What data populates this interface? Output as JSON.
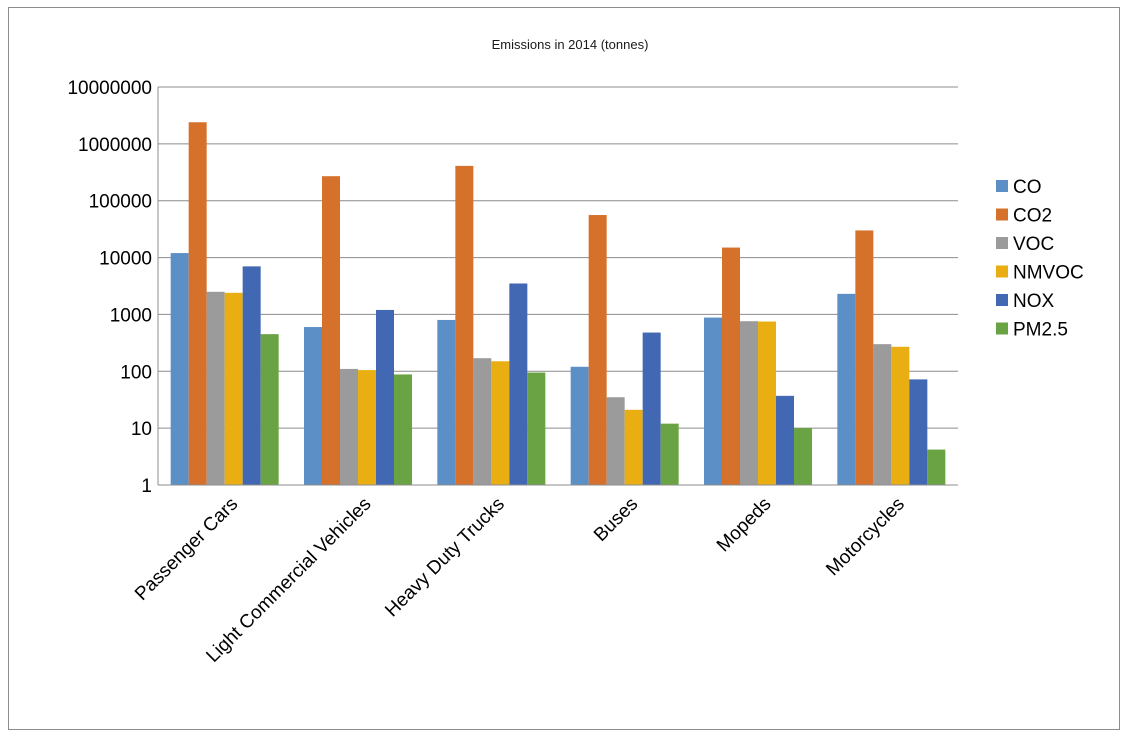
{
  "chart_data": {
    "type": "bar",
    "title": "Emissions in 2014 (tonnes)",
    "xlabel": "",
    "ylabel": "",
    "y_scale": "log",
    "ylim": [
      1,
      10000000
    ],
    "yticks": [
      "1",
      "10",
      "100",
      "1000",
      "10000",
      "100000",
      "1000000",
      "10000000"
    ],
    "categories": [
      "Passenger Cars",
      "Light Commercial Vehicles",
      "Heavy Duty Trucks",
      "Buses",
      "Mopeds",
      "Motorcycles"
    ],
    "grid": true,
    "legend_position": "right",
    "series": [
      {
        "name": "CO",
        "color": "#5b8fc6",
        "values": [
          12000,
          600,
          800,
          120,
          880,
          2300
        ]
      },
      {
        "name": "CO2",
        "color": "#d5712b",
        "values": [
          2400000,
          270000,
          410000,
          56000,
          15000,
          30000
        ]
      },
      {
        "name": "VOC",
        "color": "#9b9b9b",
        "values": [
          2500,
          110,
          170,
          35,
          760,
          300
        ]
      },
      {
        "name": "NMVOC",
        "color": "#e8ae12",
        "values": [
          2400,
          105,
          150,
          21,
          750,
          270
        ]
      },
      {
        "name": "NOX",
        "color": "#4268b3",
        "values": [
          7000,
          1200,
          3500,
          480,
          37,
          72
        ]
      },
      {
        "name": "PM2.5",
        "color": "#6aa343",
        "values": [
          450,
          88,
          95,
          12,
          10,
          4.2
        ]
      }
    ]
  }
}
